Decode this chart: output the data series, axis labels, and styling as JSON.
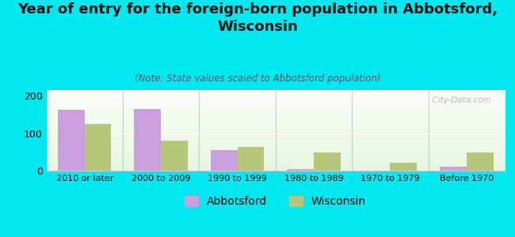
{
  "title": "Year of entry for the foreign-born population in Abbotsford,\nWisconsin",
  "subtitle": "(Note: State values scaled to Abbotsford population)",
  "categories": [
    "2010 or later",
    "2000 to 2009",
    "1990 to 1999",
    "1980 to 1989",
    "1970 to 1979",
    "Before 1970"
  ],
  "abbotsford_values": [
    163,
    165,
    55,
    5,
    0,
    10
  ],
  "wisconsin_values": [
    125,
    80,
    63,
    48,
    22,
    48
  ],
  "abbotsford_color": "#c9a0dc",
  "wisconsin_color": "#b5c87a",
  "background_color": "#00e8f0",
  "title_fontsize": 13,
  "subtitle_fontsize": 8.5,
  "ylabel_ticks": [
    0,
    100,
    200
  ],
  "ylim": [
    0,
    215
  ],
  "watermark": "  City-Data.com",
  "legend_labels": [
    "Abbotsford",
    "Wisconsin"
  ]
}
